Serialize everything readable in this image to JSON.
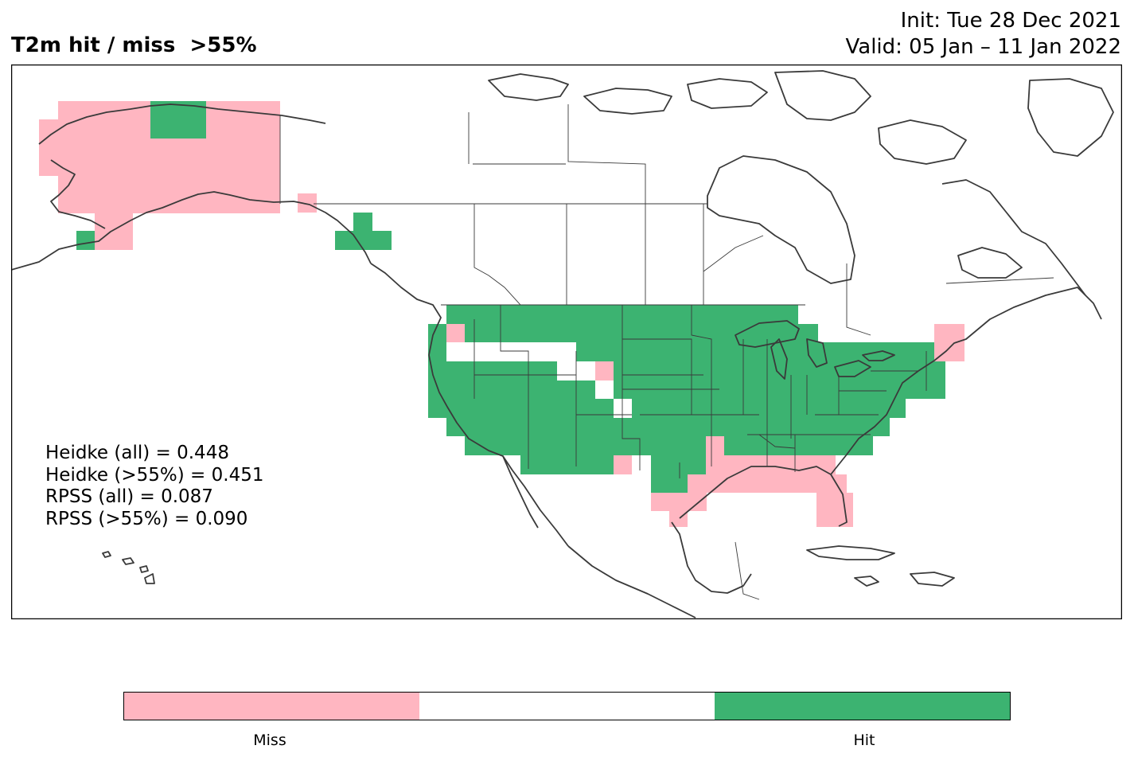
{
  "header": {
    "title": "T2m hit / miss  >55%",
    "init_line": "Init: Tue 28 Dec 2021",
    "valid_line": "Valid: 05 Jan – 11 Jan 2022"
  },
  "stats": [
    "Heidke (all) = 0.448",
    "Heidke (>55%) = 0.451",
    "RPSS (all) = 0.087",
    "RPSS (>55%) = 0.090"
  ],
  "legend": {
    "labels": [
      "Miss",
      "Hit"
    ],
    "colors": {
      "miss": "#ffb6c1",
      "none": "#ffffff",
      "hit": "#3cb371"
    }
  },
  "colors": {
    "coastline": "#3a3a3a",
    "border": "#000000"
  }
}
